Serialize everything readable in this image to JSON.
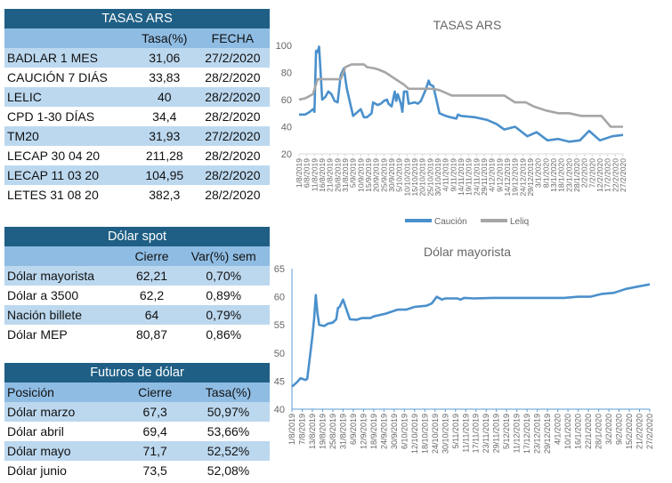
{
  "tasas": {
    "title": "TASAS ARS",
    "headers": [
      "",
      "Tasa(%)",
      "FECHA"
    ],
    "rows": [
      [
        "BADLAR 1 MES",
        "31,06",
        "27/2/2020"
      ],
      [
        "CAUCIÓN 7 DIÁS",
        "33,83",
        "28/2/2020"
      ],
      [
        "LELIC",
        "40",
        "28/2/2020"
      ],
      [
        "CPD 1-30 DÍAS",
        "34,4",
        "28/2/2020"
      ],
      [
        "TM20",
        "31,93",
        "27/2/2020"
      ],
      [
        "LECAP 30 04 20",
        "211,28",
        "28/2/2020"
      ],
      [
        "LECAP 11 03 20",
        "104,95",
        "28/2/2020"
      ],
      [
        "LETES 31 08 20",
        "382,3",
        "28/2/2020"
      ]
    ]
  },
  "spot": {
    "title": "Dólar spot",
    "headers": [
      "",
      "Cierre",
      "Var(%) sem"
    ],
    "rows": [
      [
        "Dólar mayorista",
        "62,21",
        "0,70%"
      ],
      [
        "Dólar a 3500",
        "62,2",
        "0,89%"
      ],
      [
        "Nación billete",
        "64",
        "0,79%"
      ],
      [
        "Dólar MEP",
        "80,87",
        "0,86%"
      ]
    ]
  },
  "futuros": {
    "title": "Futuros de dólar",
    "headers": [
      "Posición",
      "Cierre",
      "Tasa(%)"
    ],
    "rows": [
      [
        "Dólar marzo",
        "67,3",
        "50,97%"
      ],
      [
        "Dólar abril",
        "69,4",
        "53,66%"
      ],
      [
        "Dólar mayo",
        "71,7",
        "52,52%"
      ],
      [
        "Dólar junio",
        "73,5",
        "52,08%"
      ]
    ]
  },
  "chart_data": [
    {
      "type": "line",
      "title": "TASAS ARS",
      "ylim": [
        20,
        100
      ],
      "yticks": [
        "20",
        "40",
        "60",
        "80",
        "100"
      ],
      "xlim": [
        "1/8/2019",
        "27/2/2020"
      ],
      "xticks": [
        "1/8/2019",
        "6/8/2019",
        "11/8/2019",
        "16/8/2019",
        "21/8/2019",
        "26/8/2019",
        "31/8/2019",
        "5/9/2019",
        "10/9/2019",
        "15/9/2019",
        "20/9/2019",
        "25/9/2019",
        "30/9/2019",
        "5/10/2019",
        "10/10/2019",
        "15/10/2019",
        "20/10/2019",
        "25/10/2019",
        "30/10/2019",
        "4/11/2019",
        "9/11/2019",
        "14/11/2019",
        "19/11/2019",
        "24/11/2019",
        "29/11/2019",
        "4/12/2019",
        "9/12/2019",
        "14/12/2019",
        "19/12/2019",
        "24/12/2019",
        "29/12/2019",
        "3/1/2020",
        "8/1/2020",
        "13/1/2020",
        "18/1/2020",
        "23/1/2020",
        "28/1/2020",
        "2/2/2020",
        "7/2/2020",
        "12/2/2020",
        "17/2/2020",
        "22/2/2020",
        "27/2/2020"
      ],
      "legend": "bottom",
      "grid": false,
      "series": [
        {
          "name": "Caución",
          "color": "#4a90cc",
          "points": [
            [
              "1/8/2019",
              49
            ],
            [
              "5/8/2019",
              49
            ],
            [
              "8/8/2019",
              51
            ],
            [
              "10/8/2019",
              53
            ],
            [
              "11/8/2019",
              51
            ],
            [
              "12/8/2019",
              96
            ],
            [
              "13/8/2019",
              95
            ],
            [
              "14/8/2019",
              99
            ],
            [
              "16/8/2019",
              60
            ],
            [
              "18/8/2019",
              62
            ],
            [
              "20/8/2019",
              66
            ],
            [
              "22/8/2019",
              64
            ],
            [
              "24/8/2019",
              59
            ],
            [
              "26/8/2019",
              58
            ],
            [
              "28/8/2019",
              78
            ],
            [
              "30/8/2019",
              83
            ],
            [
              "1/9/2019",
              68
            ],
            [
              "3/9/2019",
              58
            ],
            [
              "5/9/2019",
              48
            ],
            [
              "7/9/2019",
              50
            ],
            [
              "10/9/2019",
              53
            ],
            [
              "12/9/2019",
              47
            ],
            [
              "14/9/2019",
              47
            ],
            [
              "17/9/2019",
              50
            ],
            [
              "18/9/2019",
              58
            ],
            [
              "21/9/2019",
              56
            ],
            [
              "23/9/2019",
              57
            ],
            [
              "25/9/2019",
              59
            ],
            [
              "27/9/2019",
              60
            ],
            [
              "28/9/2019",
              57
            ],
            [
              "30/9/2019",
              55
            ],
            [
              "2/10/2019",
              66
            ],
            [
              "3/10/2019",
              59
            ],
            [
              "4/10/2019",
              64
            ],
            [
              "6/10/2019",
              57
            ],
            [
              "7/10/2019",
              51
            ],
            [
              "8/10/2019",
              66
            ],
            [
              "10/10/2019",
              66
            ],
            [
              "11/10/2019",
              57
            ],
            [
              "15/10/2019",
              58
            ],
            [
              "17/10/2019",
              57
            ],
            [
              "19/10/2019",
              59
            ],
            [
              "22/10/2019",
              67
            ],
            [
              "24/10/2019",
              74
            ],
            [
              "25/10/2019",
              71
            ],
            [
              "27/10/2019",
              70
            ],
            [
              "29/10/2019",
              60
            ],
            [
              "31/10/2019",
              50
            ],
            [
              "4/11/2019",
              48
            ],
            [
              "7/11/2019",
              47
            ],
            [
              "11/11/2019",
              46
            ],
            [
              "12/11/2019",
              49
            ],
            [
              "14/11/2019",
              48
            ],
            [
              "23/11/2019",
              47
            ],
            [
              "1/12/2019",
              45
            ],
            [
              "7/12/2019",
              42
            ],
            [
              "12/12/2019",
              38
            ],
            [
              "19/12/2019",
              40
            ],
            [
              "27/12/2019",
              33
            ],
            [
              "2/1/2020",
              36
            ],
            [
              "9/1/2020",
              30
            ],
            [
              "16/1/2020",
              31
            ],
            [
              "23/1/2020",
              29
            ],
            [
              "30/1/2020",
              30
            ],
            [
              "5/2/2020",
              37
            ],
            [
              "12/2/2020",
              30
            ],
            [
              "20/2/2020",
              33
            ],
            [
              "27/2/2020",
              34
            ]
          ]
        },
        {
          "name": "Leliq",
          "color": "#a6a6a6",
          "points": [
            [
              "1/8/2019",
              60
            ],
            [
              "5/8/2019",
              61
            ],
            [
              "10/8/2019",
              64
            ],
            [
              "13/8/2019",
              75
            ],
            [
              "15/8/2019",
              75
            ],
            [
              "28/8/2019",
              75
            ],
            [
              "31/8/2019",
              84
            ],
            [
              "4/9/2019",
              86
            ],
            [
              "12/9/2019",
              86
            ],
            [
              "14/9/2019",
              84
            ],
            [
              "19/9/2019",
              83
            ],
            [
              "22/9/2019",
              82
            ],
            [
              "26/9/2019",
              80
            ],
            [
              "30/9/2019",
              77
            ],
            [
              "4/10/2019",
              74
            ],
            [
              "8/10/2019",
              71
            ],
            [
              "11/10/2019",
              68
            ],
            [
              "27/10/2019",
              68
            ],
            [
              "31/10/2019",
              67
            ],
            [
              "8/11/2019",
              63
            ],
            [
              "12/12/2019",
              63
            ],
            [
              "19/12/2019",
              58
            ],
            [
              "26/12/2019",
              58
            ],
            [
              "31/12/2019",
              55
            ],
            [
              "8/1/2020",
              52
            ],
            [
              "16/1/2020",
              50
            ],
            [
              "23/1/2020",
              50
            ],
            [
              "31/1/2020",
              48
            ],
            [
              "13/2/2020",
              48
            ],
            [
              "19/2/2020",
              40
            ],
            [
              "27/2/2020",
              40
            ]
          ]
        }
      ]
    },
    {
      "type": "line",
      "title": "Dólar mayorista",
      "ylim": [
        40,
        65
      ],
      "yticks": [
        "40",
        "45",
        "50",
        "55",
        "60",
        "65"
      ],
      "xlim": [
        "1/8/2019",
        "27/2/2020"
      ],
      "xticks": [
        "1/8/2019",
        "7/8/2019",
        "13/8/2019",
        "19/8/2019",
        "25/8/2019",
        "31/8/2019",
        "6/9/2019",
        "12/9/2019",
        "18/9/2019",
        "24/9/2019",
        "30/9/2019",
        "6/10/2019",
        "12/10/2019",
        "18/10/2019",
        "24/10/2019",
        "30/10/2019",
        "5/11/2019",
        "11/11/2019",
        "17/11/2019",
        "23/11/2019",
        "29/11/2019",
        "5/12/2019",
        "11/12/2019",
        "17/12/2019",
        "23/12/2019",
        "29/12/2019",
        "4/1/2020",
        "10/1/2020",
        "16/1/2020",
        "22/1/2020",
        "28/1/2020",
        "3/2/2020",
        "9/2/2020",
        "15/2/2020",
        "21/2/2020",
        "27/2/2020"
      ],
      "grid": false,
      "series": [
        {
          "color": "#4a90cc",
          "points": [
            [
              "1/8/2019",
              44
            ],
            [
              "4/8/2019",
              44.8
            ],
            [
              "6/8/2019",
              45.5
            ],
            [
              "7/8/2019",
              45.4
            ],
            [
              "9/8/2019",
              45.2
            ],
            [
              "10/8/2019",
              45.4
            ],
            [
              "13/8/2019",
              53
            ],
            [
              "14/8/2019",
              56
            ],
            [
              "15/8/2019",
              60.3
            ],
            [
              "16/8/2019",
              57
            ],
            [
              "17/8/2019",
              55
            ],
            [
              "20/8/2019",
              54.8
            ],
            [
              "22/8/2019",
              55.2
            ],
            [
              "25/8/2019",
              55.4
            ],
            [
              "27/8/2019",
              56
            ],
            [
              "28/8/2019",
              58
            ],
            [
              "29/8/2019",
              58.2
            ],
            [
              "31/8/2019",
              59.5
            ],
            [
              "4/9/2019",
              56
            ],
            [
              "8/9/2019",
              55.9
            ],
            [
              "11/9/2019",
              56.2
            ],
            [
              "16/9/2019",
              56.2
            ],
            [
              "18/9/2019",
              56.5
            ],
            [
              "25/9/2019",
              57
            ],
            [
              "2/10/2019",
              57.7
            ],
            [
              "7/10/2019",
              57.7
            ],
            [
              "12/10/2019",
              58.2
            ],
            [
              "19/10/2019",
              58.4
            ],
            [
              "22/10/2019",
              58.8
            ],
            [
              "25/10/2019",
              60
            ],
            [
              "28/10/2019",
              59.5
            ],
            [
              "30/10/2019",
              59.7
            ],
            [
              "6/11/2019",
              59.7
            ],
            [
              "8/11/2019",
              59.5
            ],
            [
              "10/11/2019",
              59.8
            ],
            [
              "16/11/2019",
              59.7
            ],
            [
              "27/11/2019",
              59.8
            ],
            [
              "21/12/2019",
              59.8
            ],
            [
              "8/1/2020",
              59.8
            ],
            [
              "16/1/2020",
              60
            ],
            [
              "23/1/2020",
              60
            ],
            [
              "30/1/2020",
              60.5
            ],
            [
              "6/2/2020",
              60.7
            ],
            [
              "13/2/2020",
              61.4
            ],
            [
              "20/2/2020",
              61.8
            ],
            [
              "27/2/2020",
              62.2
            ]
          ]
        }
      ]
    }
  ]
}
